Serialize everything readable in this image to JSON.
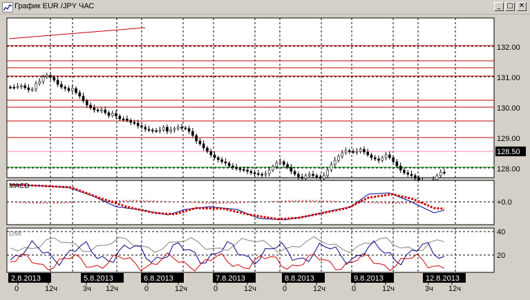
{
  "window": {
    "title": "График EUR /JPY ЧАС",
    "minimize_glyph": "_",
    "maximize_glyph": "□",
    "close_glyph": "✕"
  },
  "price_axis": {
    "ticks": [
      "132.00",
      "131.00",
      "130.00",
      "129.00",
      "128.00"
    ],
    "current_price": "128.50"
  },
  "macd_panel": {
    "label": "MACD",
    "zero_label": "+0.0"
  },
  "dmi_panel": {
    "label": "DMI",
    "ticks": [
      "40",
      "20"
    ]
  },
  "time_axis": {
    "dates": [
      "2.8.2013",
      "5.8.2013",
      "6.8.2013",
      "7.8.2013",
      "8.8.2013",
      "9.8.2013",
      "12.8.2013"
    ],
    "hour_labels": [
      {
        "text": "0"
      },
      {
        "text": "12ч"
      },
      {
        "text": "3ч"
      },
      {
        "text": "12ч"
      },
      {
        "text": "0"
      },
      {
        "text": "12ч"
      },
      {
        "text": "0"
      },
      {
        "text": "12ч"
      },
      {
        "text": "0"
      },
      {
        "text": "12ч"
      },
      {
        "text": "0"
      },
      {
        "text": "12ч"
      },
      {
        "text": "3ч"
      },
      {
        "text": "12ч"
      }
    ]
  },
  "colors": {
    "chart_bg": "#ffffff",
    "grid": "#000000",
    "resistance_lines": "#c00000",
    "support_line": "#008000",
    "pink_line": "#ff80c0",
    "signal_line": "#cc0000",
    "dmi_blue": "#00008b",
    "dmi_red": "#cc0000",
    "dmi_gray": "#808080",
    "date_label_bg": "#000000"
  }
}
